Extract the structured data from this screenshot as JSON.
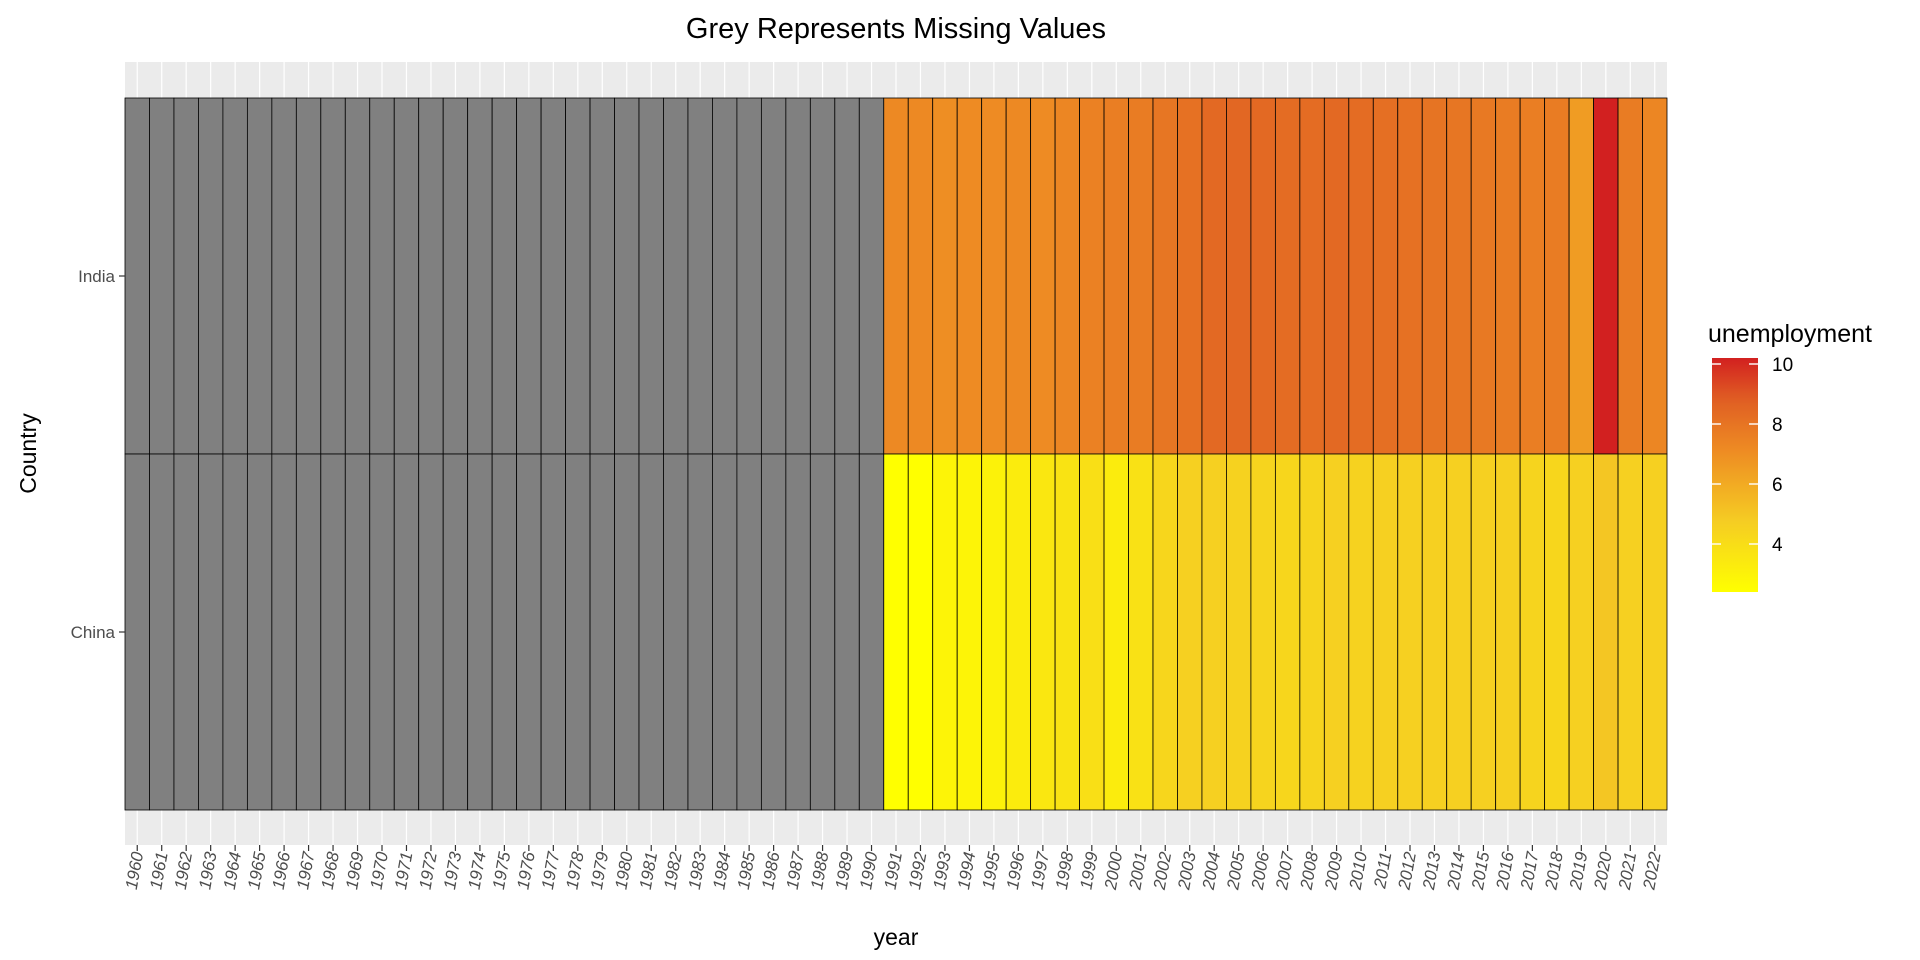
{
  "chart_data": {
    "type": "heatmap",
    "title": "Grey Represents Missing Values",
    "xlabel": "year",
    "ylabel": "Country",
    "x": [
      "1960",
      "1961",
      "1962",
      "1963",
      "1964",
      "1965",
      "1966",
      "1967",
      "1968",
      "1969",
      "1970",
      "1971",
      "1972",
      "1973",
      "1974",
      "1975",
      "1976",
      "1977",
      "1978",
      "1979",
      "1980",
      "1981",
      "1982",
      "1983",
      "1984",
      "1985",
      "1986",
      "1987",
      "1988",
      "1989",
      "1990",
      "1991",
      "1992",
      "1993",
      "1994",
      "1995",
      "1996",
      "1997",
      "1998",
      "1999",
      "2000",
      "2001",
      "2002",
      "2003",
      "2004",
      "2005",
      "2006",
      "2007",
      "2008",
      "2009",
      "2010",
      "2011",
      "2012",
      "2013",
      "2014",
      "2015",
      "2016",
      "2017",
      "2018",
      "2019",
      "2020",
      "2021",
      "2022"
    ],
    "y": [
      "India",
      "China"
    ],
    "series": [
      {
        "name": "India",
        "values": [
          null,
          null,
          null,
          null,
          null,
          null,
          null,
          null,
          null,
          null,
          null,
          null,
          null,
          null,
          null,
          null,
          null,
          null,
          null,
          null,
          null,
          null,
          null,
          null,
          null,
          null,
          null,
          null,
          null,
          null,
          null,
          7.2,
          7.2,
          7.0,
          7.1,
          7.1,
          7.2,
          7.1,
          7.3,
          7.5,
          7.6,
          7.7,
          7.9,
          8.1,
          8.4,
          8.5,
          8.4,
          8.3,
          8.3,
          8.4,
          8.3,
          8.2,
          8.1,
          8.0,
          7.9,
          7.8,
          7.7,
          7.6,
          7.7,
          6.5,
          10.2,
          7.7,
          7.3
        ]
      },
      {
        "name": "China",
        "values": [
          null,
          null,
          null,
          null,
          null,
          null,
          null,
          null,
          null,
          null,
          null,
          null,
          null,
          null,
          null,
          null,
          null,
          null,
          null,
          null,
          null,
          null,
          null,
          null,
          null,
          null,
          null,
          null,
          null,
          null,
          null,
          2.4,
          2.4,
          2.9,
          2.9,
          3.0,
          3.3,
          3.5,
          3.7,
          3.9,
          3.3,
          3.8,
          4.3,
          4.6,
          4.6,
          4.5,
          4.4,
          4.3,
          4.4,
          4.6,
          4.5,
          4.6,
          4.6,
          4.6,
          4.6,
          4.6,
          4.6,
          4.4,
          4.3,
          4.6,
          5.0,
          4.6,
          4.6
        ]
      }
    ],
    "legend": {
      "title": "unemployment",
      "ticks": [
        4,
        6,
        8,
        10
      ],
      "range": [
        2.4,
        10.2
      ],
      "placement": "right"
    },
    "colors": {
      "low": "#ffff00",
      "mid": "#f0a020",
      "high": "#d02020",
      "missing": "#808080",
      "panel": "#ebebeb",
      "grid": "#ffffff"
    }
  }
}
